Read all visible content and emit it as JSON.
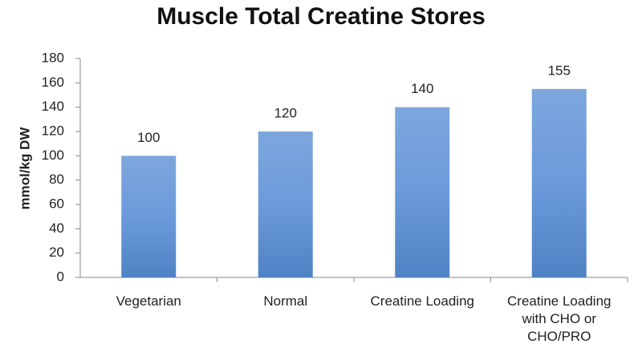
{
  "chart_data": {
    "type": "bar",
    "title": "Muscle Total Creatine Stores",
    "y_label": "mmol/kg DW",
    "categories": [
      "Vegetarian",
      "Normal",
      "Creatine Loading",
      "Creatine Loading with CHO or CHO/PRO"
    ],
    "values": [
      100,
      120,
      140,
      155
    ],
    "color": "#5b8fd0",
    "ylim": [
      0,
      180
    ],
    "yticks": [
      0,
      20,
      40,
      60,
      80,
      100,
      120,
      140,
      160,
      180
    ],
    "grid": false
  }
}
